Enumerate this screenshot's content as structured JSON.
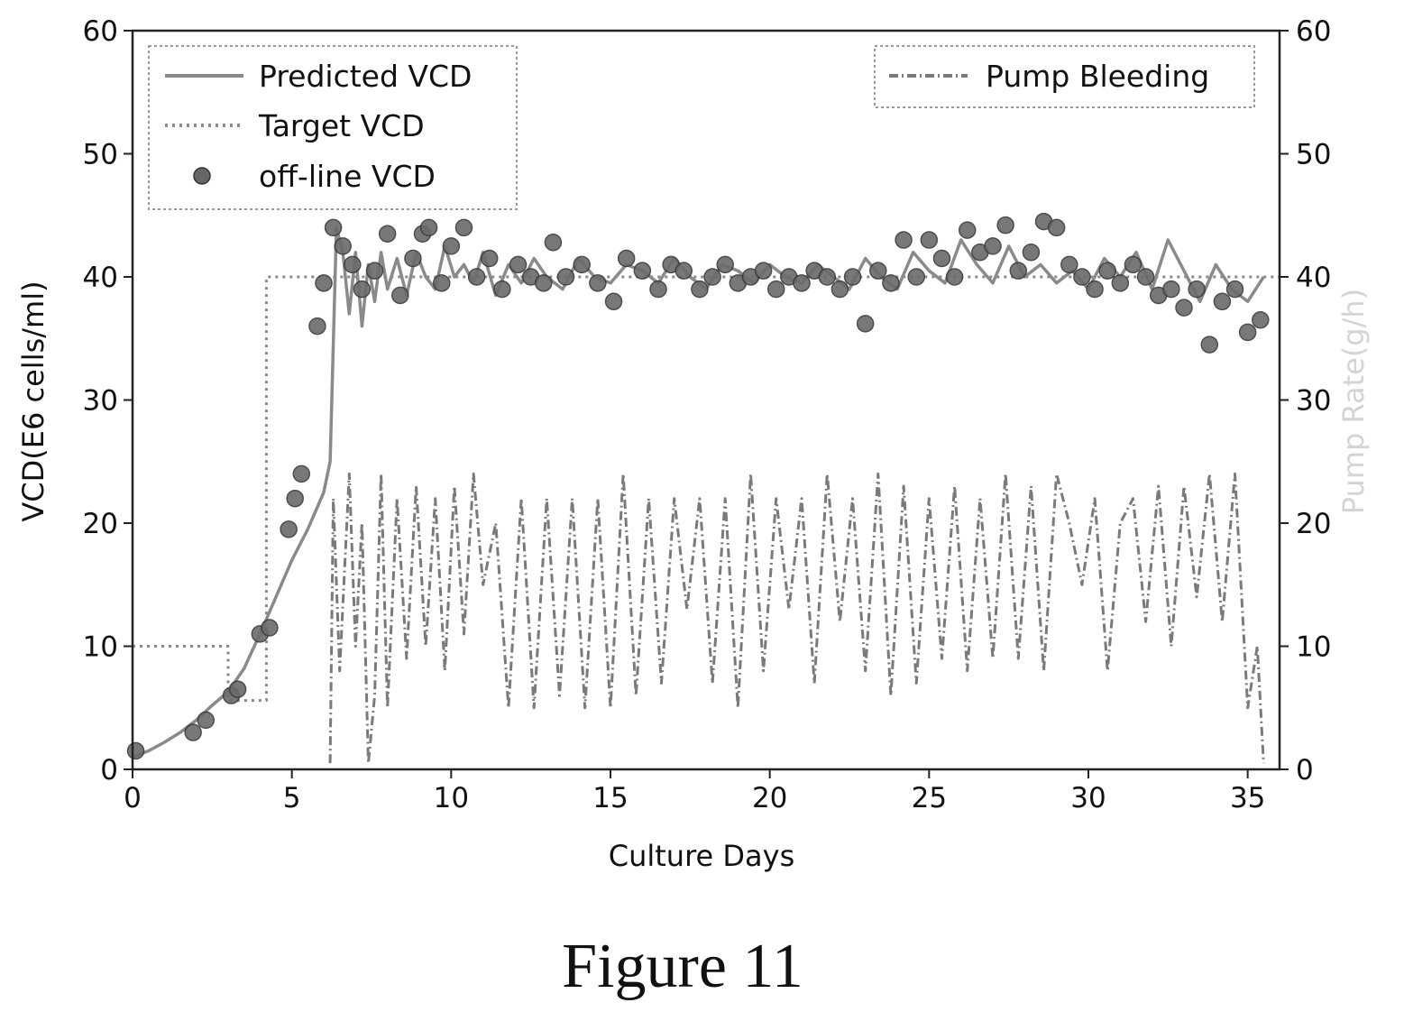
{
  "caption": "Figure 11",
  "chart_data": {
    "type": "line",
    "xlabel": "Culture Days",
    "ylabel": "VCD(E6 cells/ml)",
    "y2label": "Pump Rate(g/h)",
    "xlim": [
      0,
      36
    ],
    "ylim": [
      0,
      60
    ],
    "y2lim": [
      0,
      60
    ],
    "xticks": [
      0,
      5,
      10,
      15,
      20,
      25,
      30,
      35
    ],
    "yticks": [
      0,
      10,
      20,
      30,
      40,
      50,
      60
    ],
    "y2ticks": [
      0,
      10,
      20,
      30,
      40,
      50,
      60
    ],
    "grid": false,
    "legend_left": {
      "position": "top-left",
      "entries": [
        "Predicted VCD",
        "Target VCD",
        "off-line VCD"
      ]
    },
    "legend_right": {
      "position": "top-right",
      "entries": [
        "Pump Bleeding"
      ]
    },
    "colors": {
      "predicted": "#8a8a8a",
      "target": "#8a8a8a",
      "offline": "#555555",
      "pump": "#7a7a7a"
    },
    "series": [
      {
        "name": "Target VCD",
        "axis": "left",
        "style": "dotted",
        "x": [
          0,
          3.0,
          3.0,
          4.2,
          4.2,
          6.2,
          6.2,
          36
        ],
        "y": [
          10,
          10,
          5.6,
          5.6,
          40,
          40,
          40,
          40
        ]
      },
      {
        "name": "Predicted VCD",
        "axis": "left",
        "style": "solid",
        "x": [
          0,
          0.5,
          1.0,
          1.5,
          2.0,
          2.5,
          3.0,
          3.5,
          4.0,
          4.5,
          5.0,
          5.5,
          6.0,
          6.2,
          6.4,
          6.6,
          6.8,
          7.0,
          7.2,
          7.4,
          7.6,
          7.8,
          8.0,
          8.3,
          8.6,
          8.9,
          9.2,
          9.5,
          9.8,
          10.1,
          10.4,
          10.7,
          11.0,
          11.4,
          11.8,
          12.2,
          12.6,
          13.0,
          13.5,
          14.0,
          14.5,
          15.0,
          15.5,
          16.0,
          16.5,
          17.0,
          17.5,
          18.0,
          18.5,
          19.0,
          19.5,
          20.0,
          20.5,
          21.0,
          21.5,
          22.0,
          22.5,
          23.0,
          23.5,
          24.0,
          24.5,
          25.0,
          25.5,
          26.0,
          26.5,
          27.0,
          27.5,
          28.0,
          28.5,
          29.0,
          29.5,
          30.0,
          30.5,
          31.0,
          31.5,
          32.0,
          32.5,
          33.0,
          33.5,
          34.0,
          34.5,
          35.0,
          35.5
        ],
        "y": [
          1.0,
          1.5,
          2.2,
          3.0,
          4.0,
          5.2,
          6.3,
          8.2,
          11.0,
          14.0,
          17.0,
          19.5,
          22.5,
          25.0,
          44.0,
          42.0,
          37.0,
          42.0,
          36.0,
          41.0,
          38.0,
          42.0,
          39.0,
          41.5,
          38.5,
          42.0,
          40.0,
          39.0,
          42.5,
          40.0,
          41.0,
          39.5,
          42.0,
          38.5,
          41.0,
          39.5,
          41.5,
          40.0,
          39.0,
          41.5,
          40.0,
          39.5,
          41.0,
          40.5,
          39.5,
          41.5,
          40.0,
          39.0,
          41.0,
          40.5,
          39.5,
          41.0,
          40.0,
          39.5,
          41.0,
          40.0,
          39.0,
          41.5,
          40.0,
          39.0,
          42.0,
          40.5,
          39.5,
          43.0,
          41.0,
          39.5,
          42.5,
          40.0,
          41.0,
          39.5,
          40.5,
          39.0,
          41.5,
          40.0,
          42.0,
          39.0,
          43.0,
          40.5,
          38.0,
          41.0,
          39.0,
          38.0,
          40.0
        ]
      },
      {
        "name": "off-line VCD",
        "axis": "left",
        "style": "markers",
        "x": [
          0.1,
          1.9,
          2.3,
          3.1,
          3.3,
          4.0,
          4.3,
          4.9,
          5.1,
          5.3,
          5.8,
          6.0,
          6.3,
          6.6,
          6.9,
          7.2,
          7.6,
          8.0,
          8.4,
          8.8,
          9.1,
          9.3,
          9.7,
          10.0,
          10.4,
          10.8,
          11.2,
          11.6,
          12.1,
          12.5,
          12.9,
          13.2,
          13.6,
          14.1,
          14.6,
          15.1,
          15.5,
          16.0,
          16.5,
          16.9,
          17.3,
          17.8,
          18.2,
          18.6,
          19.0,
          19.4,
          19.8,
          20.2,
          20.6,
          21.0,
          21.4,
          21.8,
          22.2,
          22.6,
          23.0,
          23.4,
          23.8,
          24.2,
          24.6,
          25.0,
          25.4,
          25.8,
          26.2,
          26.6,
          27.0,
          27.4,
          27.8,
          28.2,
          28.6,
          29.0,
          29.4,
          29.8,
          30.2,
          30.6,
          31.0,
          31.4,
          31.8,
          32.2,
          32.6,
          33.0,
          33.4,
          33.8,
          34.2,
          34.6,
          35.0,
          35.4
        ],
        "y": [
          1.5,
          3.0,
          4.0,
          6.0,
          6.5,
          11.0,
          11.5,
          19.5,
          22.0,
          24.0,
          36.0,
          39.5,
          44.0,
          42.5,
          41.0,
          39.0,
          40.5,
          43.5,
          38.5,
          41.5,
          43.5,
          44.0,
          39.5,
          42.5,
          44.0,
          40.0,
          41.5,
          39.0,
          41.0,
          40.0,
          39.5,
          42.8,
          40.0,
          41.0,
          39.5,
          38.0,
          41.5,
          40.5,
          39.0,
          41.0,
          40.5,
          39.0,
          40.0,
          41.0,
          39.5,
          40.0,
          40.5,
          39.0,
          40.0,
          39.5,
          40.5,
          40.0,
          39.0,
          40.0,
          36.2,
          40.5,
          39.5,
          43.0,
          40.0,
          43.0,
          41.5,
          40.0,
          43.8,
          42.0,
          42.5,
          44.2,
          40.5,
          42.0,
          44.5,
          44.0,
          41.0,
          40.0,
          39.0,
          40.5,
          39.5,
          41.0,
          40.0,
          38.5,
          39.0,
          37.5,
          39.0,
          34.5,
          38.0,
          39.0,
          35.5,
          36.5
        ]
      },
      {
        "name": "Pump Bleeding",
        "axis": "right",
        "style": "dash-dot",
        "x": [
          6.2,
          6.3,
          6.5,
          6.8,
          7.0,
          7.2,
          7.4,
          7.6,
          7.8,
          8.0,
          8.3,
          8.6,
          8.9,
          9.2,
          9.5,
          9.8,
          10.1,
          10.4,
          10.7,
          11.0,
          11.4,
          11.8,
          12.2,
          12.6,
          13.0,
          13.4,
          13.8,
          14.2,
          14.6,
          15.0,
          15.4,
          15.8,
          16.2,
          16.6,
          17.0,
          17.4,
          17.8,
          18.2,
          18.6,
          19.0,
          19.4,
          19.8,
          20.2,
          20.6,
          21.0,
          21.4,
          21.8,
          22.2,
          22.6,
          23.0,
          23.4,
          23.8,
          24.2,
          24.6,
          25.0,
          25.4,
          25.8,
          26.2,
          26.6,
          27.0,
          27.4,
          27.8,
          28.2,
          28.6,
          29.0,
          29.4,
          29.8,
          30.2,
          30.6,
          31.0,
          31.4,
          31.8,
          32.2,
          32.6,
          33.0,
          33.4,
          33.8,
          34.2,
          34.6,
          35.0,
          35.3,
          35.5
        ],
        "y": [
          0.5,
          22.0,
          8.0,
          24.0,
          10.0,
          20.0,
          0.5,
          6.0,
          24.0,
          5.0,
          22.0,
          9.0,
          23.0,
          10.0,
          22.0,
          8.0,
          23.0,
          11.0,
          24.0,
          15.0,
          20.0,
          5.0,
          22.0,
          5.0,
          22.0,
          6.0,
          22.0,
          5.0,
          22.0,
          5.0,
          24.0,
          6.0,
          22.0,
          7.0,
          22.0,
          13.0,
          22.0,
          7.0,
          22.0,
          5.0,
          24.0,
          8.0,
          22.0,
          13.0,
          22.0,
          7.0,
          24.0,
          12.0,
          22.0,
          8.0,
          24.0,
          6.0,
          23.0,
          7.0,
          22.0,
          9.0,
          23.0,
          8.0,
          22.0,
          9.0,
          24.0,
          9.0,
          23.0,
          8.0,
          24.0,
          20.0,
          15.0,
          22.0,
          8.0,
          20.0,
          22.0,
          12.0,
          23.0,
          10.0,
          23.0,
          14.0,
          24.0,
          12.0,
          24.0,
          5.0,
          10.0,
          0.5
        ]
      }
    ]
  }
}
